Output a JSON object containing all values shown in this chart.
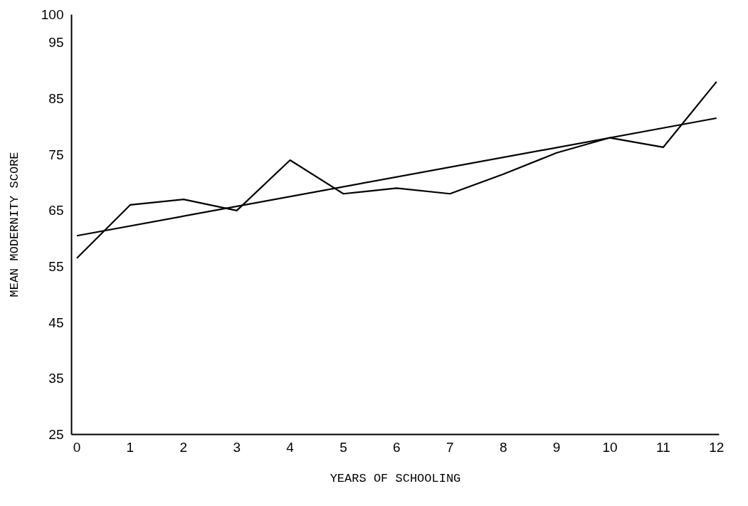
{
  "chart_data": {
    "type": "line",
    "xlabel": "YEARS OF SCHOOLING",
    "ylabel": "MEAN MODERNITY SCORE",
    "x": [
      0,
      1,
      2,
      3,
      4,
      5,
      6,
      7,
      8,
      9,
      10,
      11,
      12
    ],
    "series": [
      {
        "color": "#000000",
        "values": [
          56.5,
          66,
          67,
          65,
          74,
          68,
          69,
          68,
          71.5,
          75.3,
          78,
          76.3,
          88
        ]
      },
      {
        "color": "#000000",
        "x": [
          0,
          12
        ],
        "values": [
          60.5,
          81.5
        ]
      }
    ],
    "xlim": [
      -0.1,
      12.05
    ],
    "ylim": [
      25,
      100
    ],
    "xticks": [
      0,
      1,
      2,
      3,
      4,
      5,
      6,
      7,
      8,
      9,
      10,
      11,
      12
    ],
    "yticks": [
      25,
      35,
      45,
      55,
      65,
      75,
      85,
      95,
      100
    ],
    "line_style": "solid"
  }
}
